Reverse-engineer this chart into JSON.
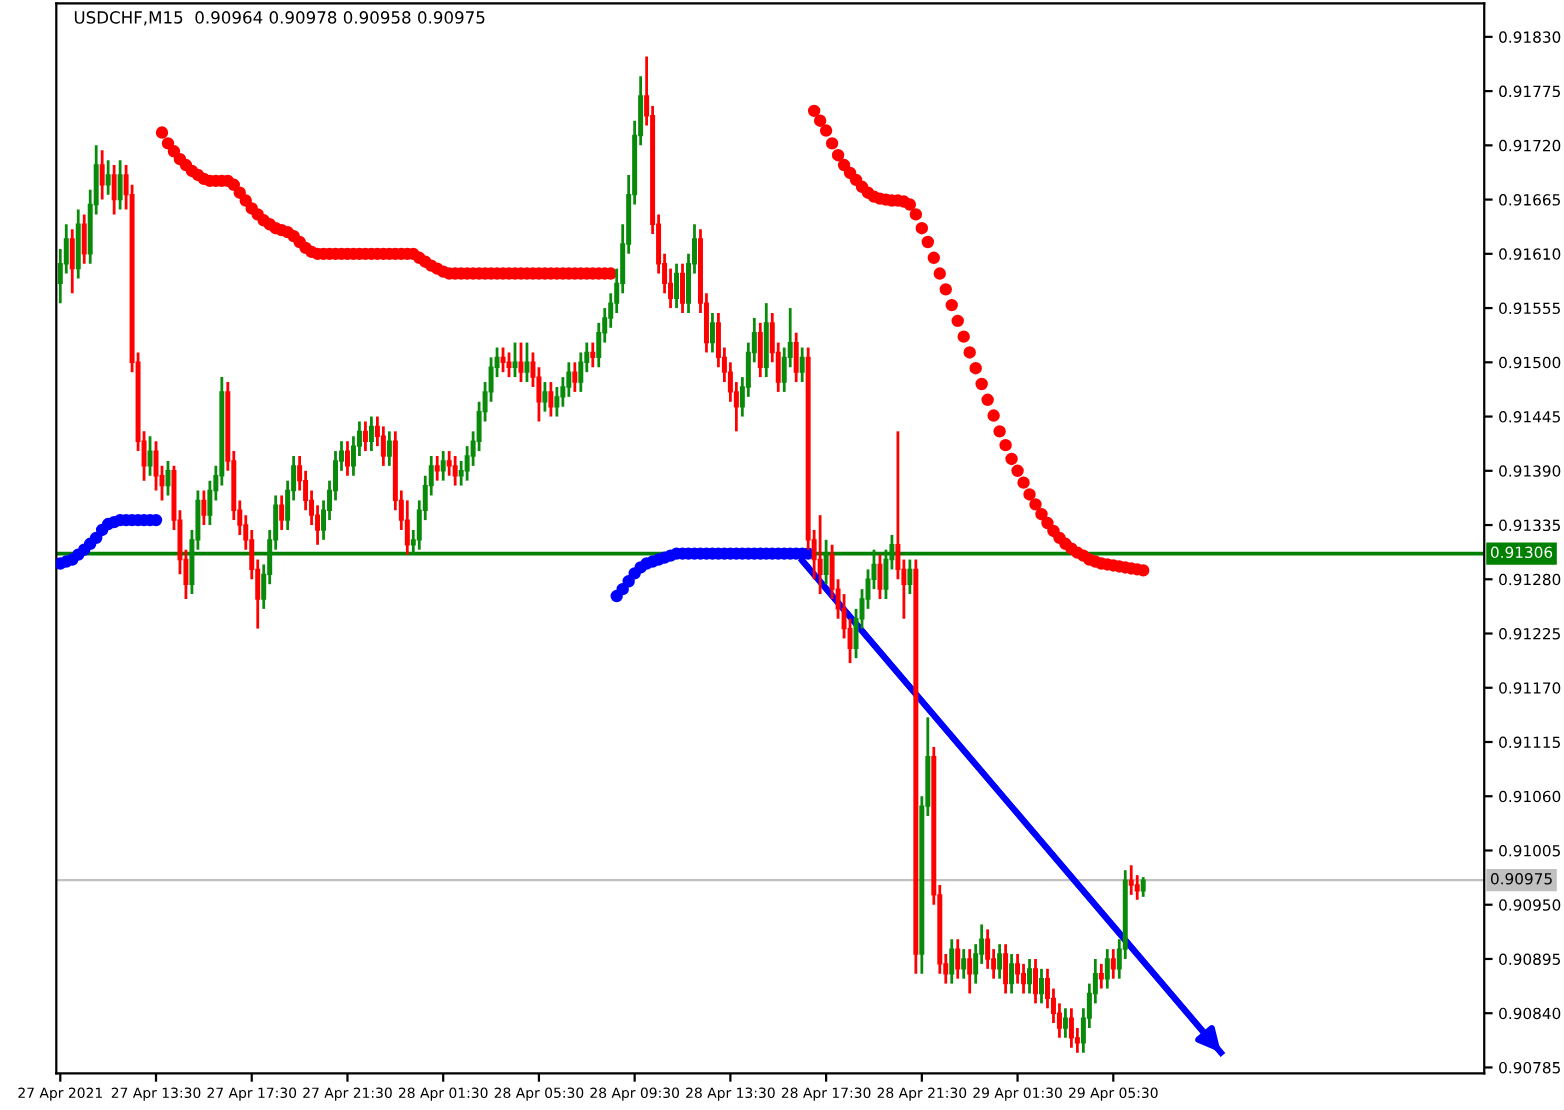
{
  "chart_data": {
    "type": "candlestick",
    "title": "USDCHF,M15  0.90964 0.90978 0.90958 0.90975",
    "x": [
      "2021-04-27T09:30",
      "2021-04-27T09:45",
      "2021-04-27T10:00",
      "2021-04-27T10:15",
      "2021-04-27T10:30",
      "2021-04-27T10:45",
      "2021-04-27T11:00",
      "2021-04-27T11:15",
      "2021-04-27T11:30",
      "2021-04-27T11:45",
      "2021-04-27T12:00",
      "2021-04-27T12:15",
      "2021-04-27T12:30",
      "2021-04-27T12:45",
      "2021-04-27T13:00",
      "2021-04-27T13:15",
      "2021-04-27T13:30",
      "2021-04-27T13:45",
      "2021-04-27T14:00",
      "2021-04-27T14:15",
      "2021-04-27T14:30",
      "2021-04-27T14:45",
      "2021-04-27T15:00",
      "2021-04-27T15:15",
      "2021-04-27T15:30",
      "2021-04-27T15:45",
      "2021-04-27T16:00",
      "2021-04-27T16:15",
      "2021-04-27T16:30",
      "2021-04-27T16:45",
      "2021-04-27T17:00",
      "2021-04-27T17:15",
      "2021-04-27T17:30",
      "2021-04-27T17:45",
      "2021-04-27T18:00",
      "2021-04-27T18:15",
      "2021-04-27T18:30",
      "2021-04-27T18:45",
      "2021-04-27T19:00",
      "2021-04-27T19:15",
      "2021-04-27T19:30",
      "2021-04-27T19:45",
      "2021-04-27T20:00",
      "2021-04-27T20:15",
      "2021-04-27T20:30",
      "2021-04-27T20:45",
      "2021-04-27T21:00",
      "2021-04-27T21:15",
      "2021-04-27T21:30",
      "2021-04-27T21:45",
      "2021-04-27T22:00",
      "2021-04-27T22:15",
      "2021-04-27T22:30",
      "2021-04-27T22:45",
      "2021-04-27T23:00",
      "2021-04-27T23:15",
      "2021-04-27T23:30",
      "2021-04-27T23:45",
      "2021-04-28T00:00",
      "2021-04-28T00:15",
      "2021-04-28T00:30",
      "2021-04-28T00:45",
      "2021-04-28T01:00",
      "2021-04-28T01:15",
      "2021-04-28T01:30",
      "2021-04-28T01:45",
      "2021-04-28T02:00",
      "2021-04-28T02:15",
      "2021-04-28T02:30",
      "2021-04-28T02:45",
      "2021-04-28T03:00",
      "2021-04-28T03:15",
      "2021-04-28T03:30",
      "2021-04-28T03:45",
      "2021-04-28T04:00",
      "2021-04-28T04:15",
      "2021-04-28T04:30",
      "2021-04-28T04:45",
      "2021-04-28T05:00",
      "2021-04-28T05:15",
      "2021-04-28T05:30",
      "2021-04-28T05:45",
      "2021-04-28T06:00",
      "2021-04-28T06:15",
      "2021-04-28T06:30",
      "2021-04-28T06:45",
      "2021-04-28T07:00",
      "2021-04-28T07:15",
      "2021-04-28T07:30",
      "2021-04-28T07:45",
      "2021-04-28T08:00",
      "2021-04-28T08:15",
      "2021-04-28T08:30",
      "2021-04-28T08:45",
      "2021-04-28T09:00",
      "2021-04-28T09:15",
      "2021-04-28T09:30",
      "2021-04-28T09:45",
      "2021-04-28T10:00",
      "2021-04-28T10:15",
      "2021-04-28T10:30",
      "2021-04-28T10:45",
      "2021-04-28T11:00",
      "2021-04-28T11:15",
      "2021-04-28T11:30",
      "2021-04-28T11:45",
      "2021-04-28T12:00",
      "2021-04-28T12:15",
      "2021-04-28T12:30",
      "2021-04-28T12:45",
      "2021-04-28T13:00",
      "2021-04-28T13:15",
      "2021-04-28T13:30",
      "2021-04-28T13:45",
      "2021-04-28T14:00",
      "2021-04-28T14:15",
      "2021-04-28T14:30",
      "2021-04-28T14:45",
      "2021-04-28T15:00",
      "2021-04-28T15:15",
      "2021-04-28T15:30",
      "2021-04-28T15:45",
      "2021-04-28T16:00",
      "2021-04-28T16:15",
      "2021-04-28T16:30",
      "2021-04-28T16:45",
      "2021-04-28T17:00",
      "2021-04-28T17:15",
      "2021-04-28T17:30",
      "2021-04-28T17:45",
      "2021-04-28T18:00",
      "2021-04-28T18:15",
      "2021-04-28T18:30",
      "2021-04-28T18:45",
      "2021-04-28T19:00",
      "2021-04-28T19:15",
      "2021-04-28T19:30",
      "2021-04-28T19:45",
      "2021-04-28T20:00",
      "2021-04-28T20:15",
      "2021-04-28T20:30",
      "2021-04-28T20:45",
      "2021-04-28T21:00",
      "2021-04-28T21:15",
      "2021-04-28T21:30",
      "2021-04-28T21:45",
      "2021-04-28T22:00",
      "2021-04-28T22:15",
      "2021-04-28T22:30",
      "2021-04-28T22:45",
      "2021-04-28T23:00",
      "2021-04-28T23:15",
      "2021-04-28T23:30",
      "2021-04-28T23:45",
      "2021-04-29T00:00",
      "2021-04-29T00:15",
      "2021-04-29T00:30",
      "2021-04-29T00:45",
      "2021-04-29T01:00",
      "2021-04-29T01:15",
      "2021-04-29T01:30",
      "2021-04-29T01:45",
      "2021-04-29T02:00",
      "2021-04-29T02:15",
      "2021-04-29T02:30",
      "2021-04-29T02:45",
      "2021-04-29T03:00",
      "2021-04-29T03:15",
      "2021-04-29T03:30",
      "2021-04-29T03:45",
      "2021-04-29T04:00",
      "2021-04-29T04:15",
      "2021-04-29T04:30",
      "2021-04-29T04:45",
      "2021-04-29T05:00",
      "2021-04-29T05:15",
      "2021-04-29T05:30",
      "2021-04-29T05:45",
      "2021-04-29T06:00",
      "2021-04-29T06:15",
      "2021-04-29T06:30",
      "2021-04-29T06:45"
    ],
    "ohlc": [
      [
        0.9158,
        0.91615,
        0.9156,
        0.916
      ],
      [
        0.916,
        0.9164,
        0.9159,
        0.91625
      ],
      [
        0.91625,
        0.91635,
        0.9157,
        0.91595
      ],
      [
        0.91595,
        0.91655,
        0.91585,
        0.9164
      ],
      [
        0.9164,
        0.9165,
        0.916,
        0.9161
      ],
      [
        0.9161,
        0.91675,
        0.916,
        0.9166
      ],
      [
        0.9166,
        0.9172,
        0.9165,
        0.917
      ],
      [
        0.917,
        0.91715,
        0.91665,
        0.9168
      ],
      [
        0.9168,
        0.91705,
        0.9167,
        0.9169
      ],
      [
        0.9169,
        0.917,
        0.9165,
        0.91665
      ],
      [
        0.91665,
        0.91705,
        0.91655,
        0.9169
      ],
      [
        0.9169,
        0.917,
        0.91655,
        0.9167
      ],
      [
        0.9167,
        0.9168,
        0.9149,
        0.915
      ],
      [
        0.915,
        0.9151,
        0.9141,
        0.9142
      ],
      [
        0.9142,
        0.9143,
        0.9138,
        0.91395
      ],
      [
        0.91395,
        0.91425,
        0.91385,
        0.9141
      ],
      [
        0.9141,
        0.9142,
        0.9137,
        0.91385
      ],
      [
        0.91385,
        0.91395,
        0.9136,
        0.91375
      ],
      [
        0.91375,
        0.914,
        0.91365,
        0.9139
      ],
      [
        0.9139,
        0.91395,
        0.9133,
        0.9134
      ],
      [
        0.9134,
        0.9135,
        0.91285,
        0.913
      ],
      [
        0.913,
        0.9131,
        0.9126,
        0.91275
      ],
      [
        0.91275,
        0.9133,
        0.91265,
        0.9132
      ],
      [
        0.9132,
        0.9137,
        0.9131,
        0.9136
      ],
      [
        0.9136,
        0.9137,
        0.91335,
        0.91345
      ],
      [
        0.91345,
        0.9138,
        0.91335,
        0.9137
      ],
      [
        0.9137,
        0.91395,
        0.9136,
        0.91385
      ],
      [
        0.91385,
        0.91485,
        0.91375,
        0.9147
      ],
      [
        0.9147,
        0.9148,
        0.9139,
        0.914
      ],
      [
        0.914,
        0.9141,
        0.9134,
        0.9135
      ],
      [
        0.9135,
        0.9136,
        0.91325,
        0.91335
      ],
      [
        0.91335,
        0.91345,
        0.9131,
        0.9132
      ],
      [
        0.9132,
        0.9133,
        0.9128,
        0.9129
      ],
      [
        0.9129,
        0.913,
        0.9123,
        0.9126
      ],
      [
        0.9126,
        0.91295,
        0.9125,
        0.91285
      ],
      [
        0.91285,
        0.9133,
        0.91275,
        0.9132
      ],
      [
        0.9132,
        0.91365,
        0.9131,
        0.91355
      ],
      [
        0.91355,
        0.91365,
        0.9133,
        0.9134
      ],
      [
        0.9134,
        0.9138,
        0.9133,
        0.9137
      ],
      [
        0.9137,
        0.91405,
        0.9136,
        0.91395
      ],
      [
        0.91395,
        0.91405,
        0.9137,
        0.9138
      ],
      [
        0.9138,
        0.9139,
        0.9135,
        0.9136
      ],
      [
        0.9136,
        0.9137,
        0.91335,
        0.91345
      ],
      [
        0.91345,
        0.91355,
        0.91315,
        0.9133
      ],
      [
        0.9133,
        0.9136,
        0.9132,
        0.9135
      ],
      [
        0.9135,
        0.9138,
        0.9134,
        0.9137
      ],
      [
        0.9137,
        0.9141,
        0.9136,
        0.914
      ],
      [
        0.914,
        0.9142,
        0.9139,
        0.9141
      ],
      [
        0.9141,
        0.9142,
        0.91385,
        0.91395
      ],
      [
        0.91395,
        0.91425,
        0.91385,
        0.91415
      ],
      [
        0.91415,
        0.9144,
        0.91405,
        0.9143
      ],
      [
        0.9143,
        0.9144,
        0.9141,
        0.9142
      ],
      [
        0.9142,
        0.91445,
        0.9141,
        0.91435
      ],
      [
        0.91435,
        0.91445,
        0.91415,
        0.91425
      ],
      [
        0.91425,
        0.91435,
        0.91395,
        0.91405
      ],
      [
        0.91405,
        0.9143,
        0.91395,
        0.9142
      ],
      [
        0.9142,
        0.9143,
        0.9135,
        0.9136
      ],
      [
        0.9136,
        0.9137,
        0.9133,
        0.9134
      ],
      [
        0.9134,
        0.9136,
        0.91305,
        0.91315
      ],
      [
        0.91315,
        0.9133,
        0.91305,
        0.9132
      ],
      [
        0.9132,
        0.9136,
        0.9131,
        0.9135
      ],
      [
        0.9135,
        0.91385,
        0.9134,
        0.91375
      ],
      [
        0.91375,
        0.91405,
        0.91365,
        0.91395
      ],
      [
        0.91395,
        0.91405,
        0.9138,
        0.9139
      ],
      [
        0.9139,
        0.9141,
        0.9138,
        0.914
      ],
      [
        0.914,
        0.9141,
        0.91385,
        0.91395
      ],
      [
        0.91395,
        0.91405,
        0.91375,
        0.91385
      ],
      [
        0.91385,
        0.914,
        0.91375,
        0.9139
      ],
      [
        0.9139,
        0.91415,
        0.9138,
        0.91405
      ],
      [
        0.91405,
        0.9143,
        0.91395,
        0.9142
      ],
      [
        0.9142,
        0.9146,
        0.9141,
        0.9145
      ],
      [
        0.9145,
        0.9148,
        0.9144,
        0.9147
      ],
      [
        0.9147,
        0.91505,
        0.9146,
        0.91495
      ],
      [
        0.91495,
        0.91515,
        0.91485,
        0.91505
      ],
      [
        0.91505,
        0.91515,
        0.9149,
        0.915
      ],
      [
        0.915,
        0.9151,
        0.91485,
        0.91495
      ],
      [
        0.91495,
        0.9152,
        0.91485,
        0.915
      ],
      [
        0.915,
        0.9152,
        0.9148,
        0.9149
      ],
      [
        0.9149,
        0.9152,
        0.9148,
        0.915
      ],
      [
        0.915,
        0.9151,
        0.91475,
        0.91485
      ],
      [
        0.91485,
        0.91495,
        0.9144,
        0.9146
      ],
      [
        0.9146,
        0.9148,
        0.9145,
        0.9147
      ],
      [
        0.9147,
        0.9148,
        0.91445,
        0.91455
      ],
      [
        0.91455,
        0.91475,
        0.91445,
        0.91465
      ],
      [
        0.91465,
        0.91485,
        0.91455,
        0.91475
      ],
      [
        0.91475,
        0.915,
        0.91465,
        0.9149
      ],
      [
        0.9149,
        0.915,
        0.9147,
        0.9148
      ],
      [
        0.9148,
        0.9151,
        0.9147,
        0.915
      ],
      [
        0.915,
        0.9152,
        0.9149,
        0.9151
      ],
      [
        0.9151,
        0.9152,
        0.91495,
        0.91505
      ],
      [
        0.91505,
        0.9154,
        0.91495,
        0.9153
      ],
      [
        0.9153,
        0.91555,
        0.9152,
        0.91545
      ],
      [
        0.91545,
        0.9157,
        0.91535,
        0.9156
      ],
      [
        0.9156,
        0.91595,
        0.9155,
        0.9158
      ],
      [
        0.9158,
        0.9164,
        0.9157,
        0.9162
      ],
      [
        0.9162,
        0.9169,
        0.9161,
        0.9167
      ],
      [
        0.9167,
        0.91745,
        0.9166,
        0.9173
      ],
      [
        0.9173,
        0.9179,
        0.9172,
        0.9177
      ],
      [
        0.9177,
        0.9181,
        0.9174,
        0.9175
      ],
      [
        0.9175,
        0.9176,
        0.9163,
        0.9164
      ],
      [
        0.9164,
        0.9165,
        0.9159,
        0.916
      ],
      [
        0.916,
        0.9161,
        0.9157,
        0.9158
      ],
      [
        0.9158,
        0.91595,
        0.91555,
        0.91565
      ],
      [
        0.91565,
        0.916,
        0.91555,
        0.9159
      ],
      [
        0.9159,
        0.916,
        0.9155,
        0.9156
      ],
      [
        0.9156,
        0.9161,
        0.9155,
        0.916
      ],
      [
        0.916,
        0.9164,
        0.9159,
        0.91625
      ],
      [
        0.91625,
        0.91635,
        0.9155,
        0.9156
      ],
      [
        0.9156,
        0.9157,
        0.9151,
        0.9152
      ],
      [
        0.9152,
        0.9155,
        0.9151,
        0.9154
      ],
      [
        0.9154,
        0.9155,
        0.91495,
        0.91505
      ],
      [
        0.91505,
        0.91515,
        0.9148,
        0.9149
      ],
      [
        0.9149,
        0.915,
        0.9146,
        0.9147
      ],
      [
        0.9147,
        0.9148,
        0.9143,
        0.91455
      ],
      [
        0.91455,
        0.91485,
        0.91445,
        0.91475
      ],
      [
        0.91475,
        0.9152,
        0.91465,
        0.9151
      ],
      [
        0.9151,
        0.91545,
        0.915,
        0.9153
      ],
      [
        0.9153,
        0.9154,
        0.91485,
        0.91495
      ],
      [
        0.91495,
        0.9156,
        0.91485,
        0.9154
      ],
      [
        0.9154,
        0.9155,
        0.915,
        0.9151
      ],
      [
        0.9151,
        0.9152,
        0.9147,
        0.9148
      ],
      [
        0.9148,
        0.91515,
        0.9147,
        0.91505
      ],
      [
        0.91505,
        0.91555,
        0.91495,
        0.9152
      ],
      [
        0.9152,
        0.9153,
        0.9148,
        0.9149
      ],
      [
        0.9149,
        0.91515,
        0.9148,
        0.91505
      ],
      [
        0.91505,
        0.91515,
        0.9131,
        0.9132
      ],
      [
        0.9132,
        0.9133,
        0.9128,
        0.913
      ],
      [
        0.913,
        0.91345,
        0.91265,
        0.91285
      ],
      [
        0.91285,
        0.9132,
        0.91275,
        0.91305
      ],
      [
        0.91305,
        0.91315,
        0.9126,
        0.9127
      ],
      [
        0.9127,
        0.9128,
        0.9124,
        0.9125
      ],
      [
        0.9125,
        0.91265,
        0.9122,
        0.9123
      ],
      [
        0.9123,
        0.9124,
        0.91195,
        0.9121
      ],
      [
        0.9121,
        0.9125,
        0.912,
        0.9124
      ],
      [
        0.9124,
        0.9127,
        0.9123,
        0.9126
      ],
      [
        0.9126,
        0.9129,
        0.9125,
        0.9128
      ],
      [
        0.9128,
        0.9131,
        0.9127,
        0.91295
      ],
      [
        0.91295,
        0.91305,
        0.9126,
        0.9127
      ],
      [
        0.9127,
        0.9131,
        0.9126,
        0.913
      ],
      [
        0.913,
        0.91325,
        0.9129,
        0.91315
      ],
      [
        0.91315,
        0.9143,
        0.9128,
        0.9129
      ],
      [
        0.9129,
        0.913,
        0.9124,
        0.91275
      ],
      [
        0.91275,
        0.913,
        0.91265,
        0.9129
      ],
      [
        0.9129,
        0.913,
        0.9088,
        0.909
      ],
      [
        0.909,
        0.9106,
        0.9088,
        0.9105
      ],
      [
        0.9105,
        0.9114,
        0.9104,
        0.911
      ],
      [
        0.911,
        0.9111,
        0.9095,
        0.9096
      ],
      [
        0.9096,
        0.9097,
        0.9088,
        0.9089
      ],
      [
        0.9089,
        0.909,
        0.9087,
        0.9088
      ],
      [
        0.9088,
        0.90915,
        0.9087,
        0.90905
      ],
      [
        0.90905,
        0.90915,
        0.90875,
        0.90885
      ],
      [
        0.90885,
        0.90905,
        0.90875,
        0.90895
      ],
      [
        0.90895,
        0.90905,
        0.9086,
        0.9088
      ],
      [
        0.9088,
        0.9091,
        0.9087,
        0.909
      ],
      [
        0.909,
        0.9093,
        0.9089,
        0.90915
      ],
      [
        0.90915,
        0.90925,
        0.90885,
        0.90895
      ],
      [
        0.90895,
        0.90905,
        0.90875,
        0.90885
      ],
      [
        0.90885,
        0.9091,
        0.90875,
        0.909
      ],
      [
        0.909,
        0.9091,
        0.9086,
        0.9087
      ],
      [
        0.9087,
        0.909,
        0.9086,
        0.9089
      ],
      [
        0.9089,
        0.909,
        0.9087,
        0.9088
      ],
      [
        0.9088,
        0.9089,
        0.9086,
        0.9087
      ],
      [
        0.9087,
        0.90895,
        0.9086,
        0.90885
      ],
      [
        0.90885,
        0.90895,
        0.9085,
        0.9086
      ],
      [
        0.9086,
        0.90885,
        0.9085,
        0.90875
      ],
      [
        0.90875,
        0.90885,
        0.90845,
        0.90855
      ],
      [
        0.90855,
        0.90865,
        0.9083,
        0.9084
      ],
      [
        0.9084,
        0.9085,
        0.90815,
        0.90825
      ],
      [
        0.90825,
        0.90845,
        0.90815,
        0.90835
      ],
      [
        0.90835,
        0.90845,
        0.90805,
        0.90815
      ],
      [
        0.90815,
        0.90825,
        0.908,
        0.9081
      ],
      [
        0.9081,
        0.90845,
        0.908,
        0.90835
      ],
      [
        0.90835,
        0.9087,
        0.90825,
        0.9086
      ],
      [
        0.9086,
        0.90895,
        0.9085,
        0.9088
      ],
      [
        0.9088,
        0.9089,
        0.90865,
        0.90875
      ],
      [
        0.90875,
        0.90905,
        0.90865,
        0.90895
      ],
      [
        0.90895,
        0.90905,
        0.90875,
        0.90885
      ],
      [
        0.90885,
        0.90915,
        0.90875,
        0.90905
      ],
      [
        0.90905,
        0.90985,
        0.90895,
        0.90975
      ],
      [
        0.90975,
        0.9099,
        0.9096,
        0.9097
      ],
      [
        0.9097,
        0.9098,
        0.90955,
        0.90964
      ],
      [
        0.90964,
        0.90978,
        0.90958,
        0.90975
      ]
    ],
    "series": [
      {
        "type": "scatter",
        "color": "#ff0000",
        "marker": "circle",
        "values": [
          null,
          null,
          null,
          null,
          null,
          null,
          null,
          null,
          null,
          null,
          null,
          null,
          null,
          null,
          null,
          null,
          null,
          0.91733,
          0.91722,
          0.91714,
          0.91706,
          0.917,
          0.91694,
          0.9169,
          0.91686,
          0.91684,
          0.91684,
          0.91684,
          0.91684,
          0.9168,
          0.91672,
          0.91664,
          0.91656,
          0.9165,
          0.91644,
          0.9164,
          0.91636,
          0.91634,
          0.91632,
          0.91628,
          0.91622,
          0.91616,
          0.91612,
          0.9161,
          0.9161,
          0.9161,
          0.9161,
          0.9161,
          0.9161,
          0.9161,
          0.9161,
          0.9161,
          0.9161,
          0.9161,
          0.9161,
          0.9161,
          0.9161,
          0.9161,
          0.9161,
          0.9161,
          0.91606,
          0.91602,
          0.91598,
          0.91595,
          0.91592,
          0.9159,
          0.9159,
          0.9159,
          0.9159,
          0.9159,
          0.9159,
          0.9159,
          0.9159,
          0.9159,
          0.9159,
          0.9159,
          0.9159,
          0.9159,
          0.9159,
          0.9159,
          0.9159,
          0.9159,
          0.9159,
          0.9159,
          0.9159,
          0.9159,
          0.9159,
          0.9159,
          0.9159,
          0.9159,
          0.9159,
          0.9159,
          0.9159,
          null,
          null,
          null,
          null,
          null,
          null,
          null,
          null,
          null,
          null,
          null,
          null,
          null,
          null,
          null,
          null,
          null,
          null,
          null,
          null,
          null,
          null,
          null,
          null,
          null,
          null,
          null,
          null,
          null,
          null,
          null,
          null,
          null,
          0.91755,
          0.91745,
          0.91735,
          0.91722,
          0.9171,
          0.917,
          0.91692,
          0.91685,
          0.91678,
          0.91672,
          0.91668,
          0.91666,
          0.91665,
          0.91664,
          0.91664,
          0.91663,
          0.9166,
          0.9165,
          0.91636,
          0.91622,
          0.91606,
          0.9159,
          0.91574,
          0.91558,
          0.91542,
          0.91526,
          0.9151,
          0.91494,
          0.91478,
          0.91462,
          0.91446,
          0.9143,
          0.91416,
          0.91402,
          0.9139,
          0.91378,
          0.91366,
          0.91356,
          0.91346,
          0.91337,
          0.91329,
          0.91322,
          0.91316,
          0.91311,
          0.91307,
          0.91304,
          0.913,
          0.91298,
          0.91296,
          0.91295,
          0.91294,
          0.91293,
          0.91292,
          0.91291,
          0.9129,
          0.91289
        ]
      },
      {
        "type": "scatter",
        "color": "#0000ff",
        "marker": "circle",
        "values": [
          0.91296,
          0.91298,
          0.913,
          0.91305,
          0.9131,
          0.91316,
          0.91322,
          0.9133,
          0.91336,
          0.91338,
          0.9134,
          0.9134,
          0.9134,
          0.9134,
          0.9134,
          0.9134,
          0.9134,
          null,
          null,
          null,
          null,
          null,
          null,
          null,
          null,
          null,
          null,
          null,
          null,
          null,
          null,
          null,
          null,
          null,
          null,
          null,
          null,
          null,
          null,
          null,
          null,
          null,
          null,
          null,
          null,
          null,
          null,
          null,
          null,
          null,
          null,
          null,
          null,
          null,
          null,
          null,
          null,
          null,
          null,
          null,
          null,
          null,
          null,
          null,
          null,
          null,
          null,
          null,
          null,
          null,
          null,
          null,
          null,
          null,
          null,
          null,
          null,
          null,
          null,
          null,
          null,
          null,
          null,
          null,
          null,
          null,
          null,
          null,
          null,
          null,
          null,
          null,
          null,
          0.91263,
          0.9127,
          0.91278,
          0.91286,
          0.91292,
          0.91296,
          0.91298,
          0.913,
          0.91302,
          0.91304,
          0.91306,
          0.91306,
          0.91306,
          0.91306,
          0.91306,
          0.91306,
          0.91306,
          0.91306,
          0.91306,
          0.91306,
          0.91306,
          0.91306,
          0.91306,
          0.91306,
          0.91306,
          0.91306,
          0.91306,
          0.91306,
          0.91306,
          0.91306,
          0.91306,
          0.91306,
          0.91306,
          null,
          null,
          null,
          null,
          null,
          null,
          null,
          null,
          null,
          null,
          null,
          null,
          null,
          null,
          null,
          null,
          null,
          null,
          null,
          null,
          null,
          null,
          null,
          null,
          null,
          null,
          null,
          null,
          null,
          null,
          null,
          null,
          null,
          null,
          null,
          null,
          null,
          null,
          null,
          null,
          null,
          null,
          null,
          null,
          null,
          null,
          null,
          null,
          null,
          null,
          null,
          null,
          null,
          null,
          null,
          null
        ]
      },
      {
        "type": "line",
        "color": "#0000ff",
        "x": [
          "2021-04-28T16:30",
          "2021-04-29T10:00"
        ],
        "values": [
          0.91299,
          0.908
        ]
      }
    ],
    "ref_lines": [
      {
        "axis": "y",
        "value": 0.91306,
        "label": "0.91306",
        "color": "#008000"
      },
      {
        "axis": "y",
        "value": 0.90975,
        "label": "0.90975",
        "color": "#c0c0c0"
      }
    ],
    "xlim": [
      "2021-04-27T09:20",
      "2021-04-29T21:00"
    ],
    "xticks": [
      {
        "value": "2021-04-27T09:30",
        "label": "27 Apr 2021"
      },
      {
        "value": "2021-04-27T13:30",
        "label": "27 Apr 13:30"
      },
      {
        "value": "2021-04-27T17:30",
        "label": "27 Apr 17:30"
      },
      {
        "value": "2021-04-27T21:30",
        "label": "27 Apr 21:30"
      },
      {
        "value": "2021-04-28T01:30",
        "label": "28 Apr 01:30"
      },
      {
        "value": "2021-04-28T05:30",
        "label": "28 Apr 05:30"
      },
      {
        "value": "2021-04-28T09:30",
        "label": "28 Apr 09:30"
      },
      {
        "value": "2021-04-28T13:30",
        "label": "28 Apr 13:30"
      },
      {
        "value": "2021-04-28T17:30",
        "label": "28 Apr 17:30"
      },
      {
        "value": "2021-04-28T21:30",
        "label": "28 Apr 21:30"
      },
      {
        "value": "2021-04-29T01:30",
        "label": "29 Apr 01:30"
      },
      {
        "value": "2021-04-29T05:30",
        "label": "29 Apr 05:30"
      }
    ],
    "ylim": [
      0.90779,
      0.91864
    ],
    "yticks": [
      {
        "value": 0.9183,
        "label": "0.91830"
      },
      0.91775,
      {
        "value": 0.9172,
        "label": "0.91720"
      },
      0.91665,
      {
        "value": 0.9161,
        "label": "0.91610"
      },
      0.91555,
      {
        "value": 0.915,
        "label": "0.91500"
      },
      0.91445,
      {
        "value": 0.9139,
        "label": "0.91390"
      },
      0.91335,
      {
        "value": 0.9128,
        "label": "0.91280"
      },
      0.91225,
      {
        "value": 0.9117,
        "label": "0.91170"
      },
      0.91115,
      {
        "value": 0.9106,
        "label": "0.91060"
      },
      0.91005,
      {
        "value": 0.9095,
        "label": "0.90950"
      },
      0.90895,
      {
        "value": 0.9084,
        "label": "0.90840"
      },
      0.90785
    ],
    "grid": false,
    "legend": false
  }
}
